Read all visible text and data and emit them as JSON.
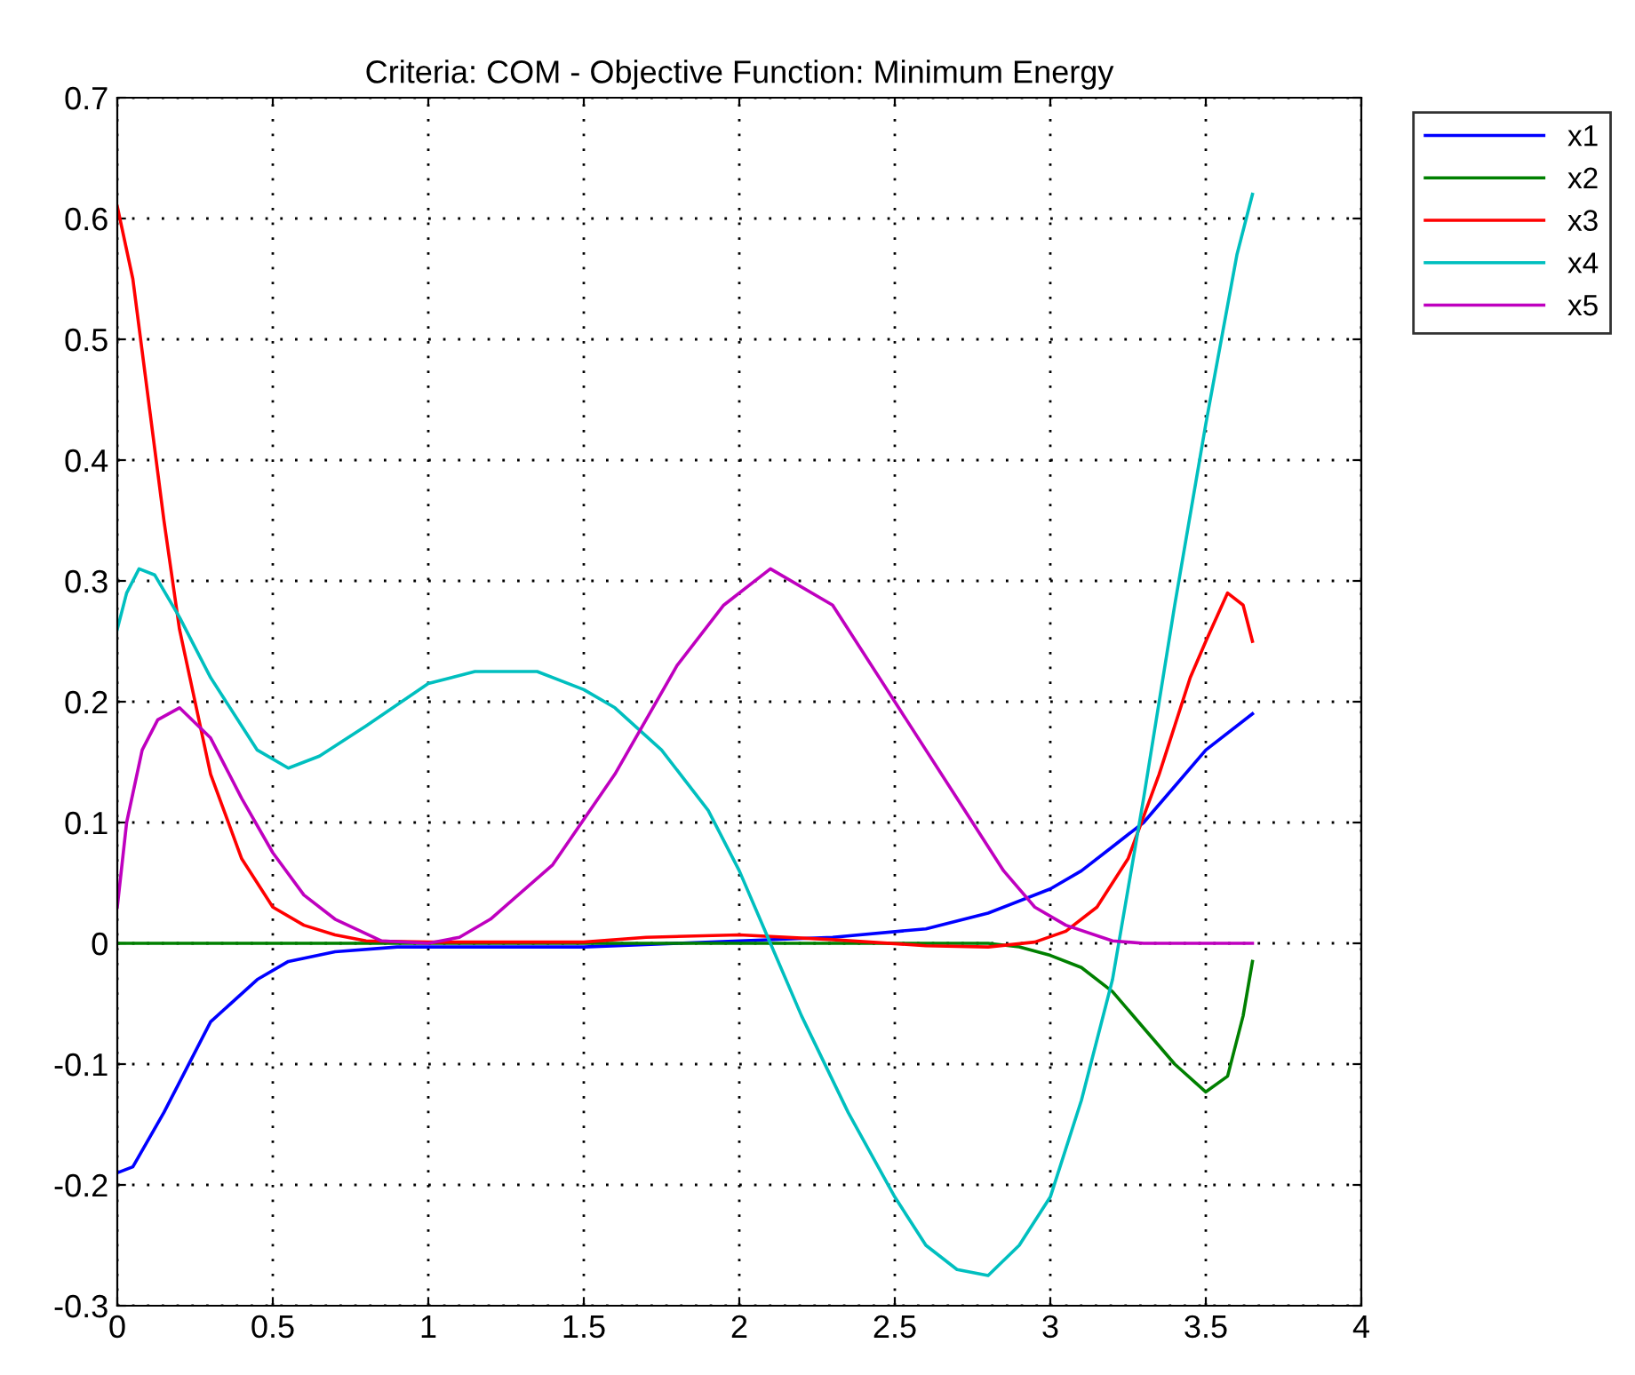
{
  "chart_data": {
    "type": "line",
    "title": "Criteria: COM - Objective Function: Minimum Energy",
    "series": [
      {
        "name": "x1",
        "color": "#0000ff",
        "x": [
          0,
          0.05,
          0.15,
          0.3,
          0.45,
          0.55,
          0.7,
          0.9,
          1.5,
          2,
          2.3,
          2.6,
          2.8,
          3.0,
          3.1,
          3.2,
          3.3,
          3.4,
          3.5,
          3.65
        ],
        "values": [
          -0.19,
          -0.185,
          -0.14,
          -0.065,
          -0.03,
          -0.015,
          -0.007,
          -0.003,
          -0.003,
          0.002,
          0.005,
          0.012,
          0.025,
          0.045,
          0.06,
          0.08,
          0.1,
          0.13,
          0.16,
          0.19
        ]
      },
      {
        "name": "x2",
        "color": "#008000",
        "x": [
          0,
          2.8,
          2.9,
          3.0,
          3.1,
          3.2,
          3.3,
          3.4,
          3.5,
          3.57,
          3.62,
          3.65
        ],
        "values": [
          0,
          0,
          -0.003,
          -0.01,
          -0.02,
          -0.04,
          -0.07,
          -0.1,
          -0.123,
          -0.11,
          -0.06,
          -0.015
        ]
      },
      {
        "name": "x3",
        "color": "#ff0000",
        "x": [
          0,
          0.05,
          0.1,
          0.15,
          0.2,
          0.3,
          0.4,
          0.5,
          0.6,
          0.7,
          0.8,
          1.0,
          1.5,
          1.7,
          2,
          2.3,
          2.6,
          2.8,
          2.95,
          3.05,
          3.15,
          3.25,
          3.35,
          3.45,
          3.5,
          3.57,
          3.62,
          3.65
        ],
        "values": [
          0.61,
          0.55,
          0.45,
          0.35,
          0.26,
          0.14,
          0.07,
          0.03,
          0.015,
          0.007,
          0.002,
          0.001,
          0.001,
          0.005,
          0.007,
          0.003,
          -0.002,
          -0.003,
          0.001,
          0.01,
          0.03,
          0.07,
          0.14,
          0.22,
          0.25,
          0.29,
          0.28,
          0.25
        ]
      },
      {
        "name": "x4",
        "color": "#00bfbf",
        "x": [
          0,
          0.03,
          0.07,
          0.12,
          0.2,
          0.3,
          0.4,
          0.45,
          0.55,
          0.65,
          0.8,
          1.0,
          1.15,
          1.35,
          1.5,
          1.6,
          1.75,
          1.9,
          2.0,
          2.1,
          2.2,
          2.35,
          2.5,
          2.6,
          2.7,
          2.8,
          2.9,
          3.0,
          3.1,
          3.2,
          3.3,
          3.4,
          3.5,
          3.6,
          3.65
        ],
        "values": [
          0.26,
          0.29,
          0.31,
          0.305,
          0.27,
          0.22,
          0.18,
          0.16,
          0.145,
          0.155,
          0.18,
          0.215,
          0.225,
          0.225,
          0.21,
          0.195,
          0.16,
          0.11,
          0.06,
          0.0,
          -0.06,
          -0.14,
          -0.21,
          -0.25,
          -0.27,
          -0.275,
          -0.25,
          -0.21,
          -0.13,
          -0.03,
          0.12,
          0.28,
          0.43,
          0.57,
          0.62
        ]
      },
      {
        "name": "x5",
        "color": "#bf00bf",
        "x": [
          0,
          0.03,
          0.08,
          0.13,
          0.2,
          0.3,
          0.4,
          0.5,
          0.6,
          0.7,
          0.85,
          1.0,
          1.1,
          1.2,
          1.4,
          1.6,
          1.8,
          1.95,
          2.1,
          2.3,
          2.5,
          2.7,
          2.85,
          2.95,
          3.05,
          3.2,
          3.3,
          3.65
        ],
        "values": [
          0.03,
          0.1,
          0.16,
          0.185,
          0.195,
          0.17,
          0.12,
          0.075,
          0.04,
          0.02,
          0.002,
          0.0,
          0.005,
          0.02,
          0.065,
          0.14,
          0.23,
          0.28,
          0.31,
          0.28,
          0.2,
          0.12,
          0.06,
          0.03,
          0.015,
          0.002,
          0,
          0
        ]
      }
    ],
    "xlim": [
      0,
      4
    ],
    "xticks": [
      0,
      0.5,
      1,
      1.5,
      2,
      2.5,
      3,
      3.5,
      4
    ],
    "ylim": [
      -0.3,
      0.7
    ],
    "yticks": [
      -0.3,
      -0.2,
      -0.1,
      0,
      0.1,
      0.2,
      0.3,
      0.4,
      0.5,
      0.6,
      0.7
    ],
    "grid": true,
    "legend": "top right",
    "line_style": "solid"
  }
}
